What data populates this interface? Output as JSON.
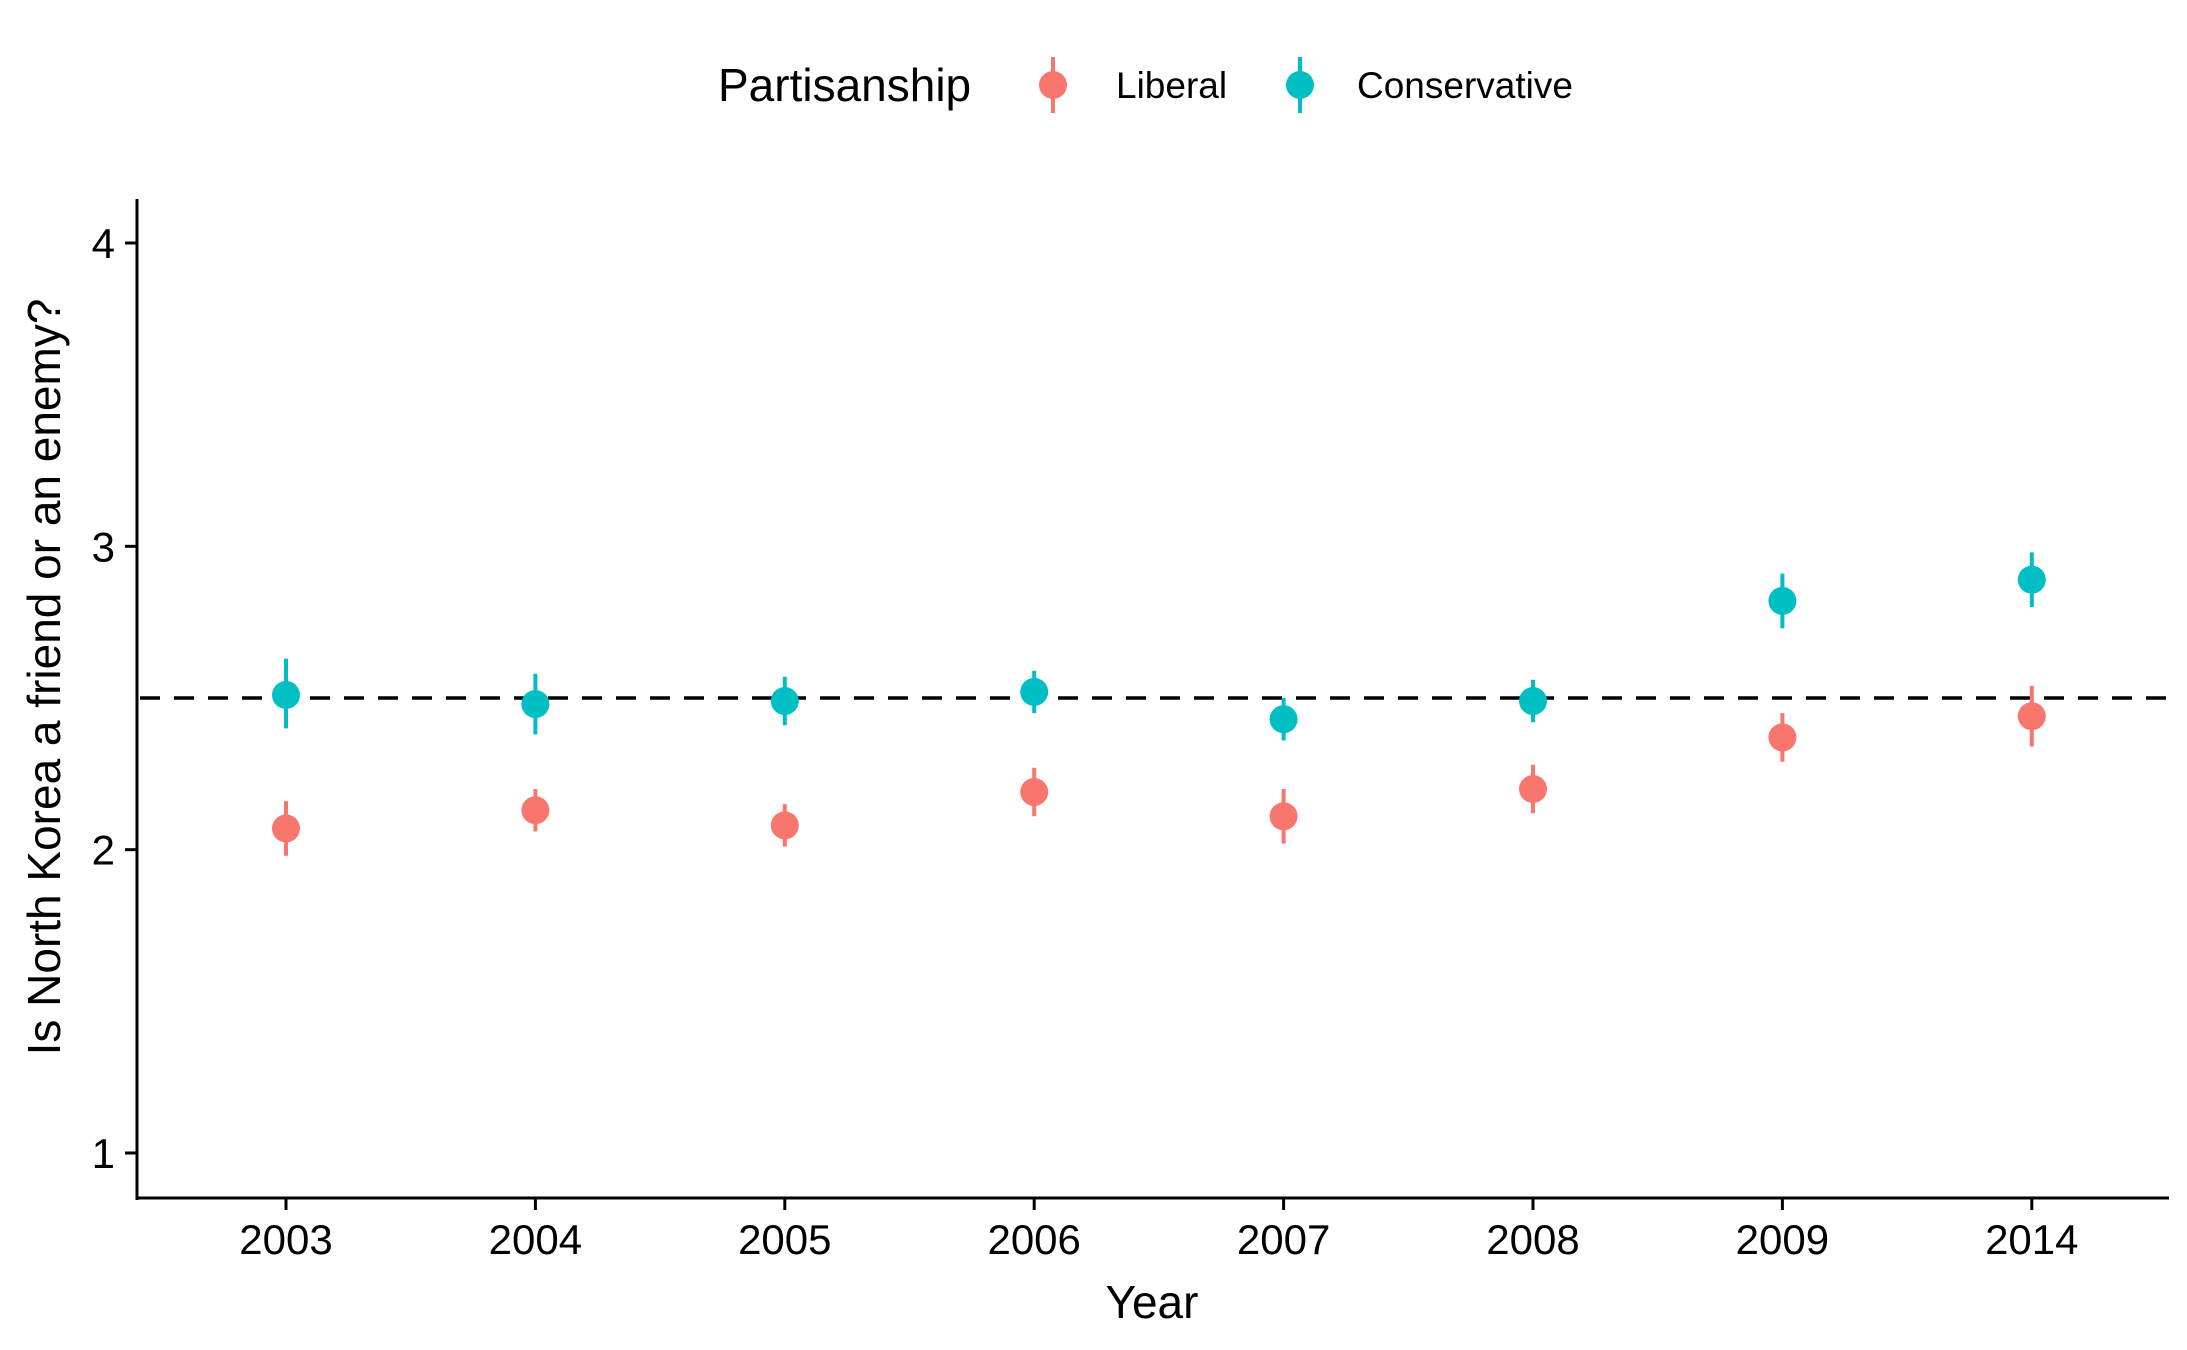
{
  "chart_data": {
    "type": "scatter",
    "title": "",
    "xlabel": "Year",
    "ylabel": "Is North Korea a friend or an enemy?",
    "categories": [
      "2003",
      "2004",
      "2005",
      "2006",
      "2007",
      "2008",
      "2009",
      "2014"
    ],
    "ylim": [
      0.85,
      4.15
    ],
    "yticks": [
      1,
      2,
      3,
      4
    ],
    "reference_line": {
      "y": 2.5,
      "style": "dashed",
      "color": "#000000"
    },
    "grid": false,
    "legend": {
      "title": "Partisanship",
      "position": "top",
      "entries": [
        "Liberal",
        "Conservative"
      ]
    },
    "series": [
      {
        "name": "Liberal",
        "color": "#F8766D",
        "values": [
          2.07,
          2.13,
          2.08,
          2.19,
          2.11,
          2.2,
          2.37,
          2.44
        ],
        "lower": [
          1.98,
          2.06,
          2.01,
          2.11,
          2.02,
          2.12,
          2.29,
          2.34
        ],
        "upper": [
          2.16,
          2.2,
          2.15,
          2.27,
          2.2,
          2.28,
          2.45,
          2.54
        ]
      },
      {
        "name": "Conservative",
        "color": "#00BFC4",
        "values": [
          2.51,
          2.48,
          2.49,
          2.52,
          2.43,
          2.49,
          2.82,
          2.89
        ],
        "lower": [
          2.4,
          2.38,
          2.41,
          2.45,
          2.36,
          2.42,
          2.73,
          2.8
        ],
        "upper": [
          2.63,
          2.58,
          2.57,
          2.59,
          2.5,
          2.56,
          2.91,
          2.98
        ]
      }
    ]
  }
}
